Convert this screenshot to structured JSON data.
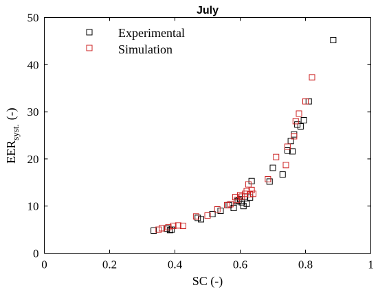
{
  "chart_data": {
    "type": "scatter",
    "title": "July",
    "xlabel": "SC (-)",
    "ylabel_main": "EER",
    "ylabel_sub": "syst.",
    "ylabel_unit": "(-)",
    "xlim": [
      0,
      1
    ],
    "ylim": [
      0,
      50
    ],
    "xticks": [
      0,
      0.2,
      0.4,
      0.6,
      0.8,
      1
    ],
    "xtick_labels": [
      "0",
      "0.2",
      "0.4",
      "0.6",
      "0.8",
      "1"
    ],
    "yticks": [
      0,
      10,
      20,
      30,
      40,
      50
    ],
    "ytick_labels": [
      "0",
      "10",
      "20",
      "30",
      "40",
      "50"
    ],
    "grid": false,
    "legend_position": "top-left",
    "series": [
      {
        "name": "Experimental",
        "color": "#000000",
        "marker": "square-open",
        "points": [
          [
            0.335,
            4.8
          ],
          [
            0.375,
            5.2
          ],
          [
            0.385,
            4.9
          ],
          [
            0.39,
            5.0
          ],
          [
            0.47,
            7.5
          ],
          [
            0.48,
            7.2
          ],
          [
            0.515,
            8.3
          ],
          [
            0.54,
            9.0
          ],
          [
            0.565,
            10.2
          ],
          [
            0.58,
            9.6
          ],
          [
            0.59,
            11.0
          ],
          [
            0.595,
            11.2
          ],
          [
            0.6,
            11.5
          ],
          [
            0.605,
            10.8
          ],
          [
            0.61,
            10.0
          ],
          [
            0.615,
            12.0
          ],
          [
            0.62,
            10.5
          ],
          [
            0.63,
            11.8
          ],
          [
            0.635,
            15.3
          ],
          [
            0.69,
            15.2
          ],
          [
            0.7,
            18.1
          ],
          [
            0.73,
            16.7
          ],
          [
            0.745,
            21.8
          ],
          [
            0.755,
            23.8
          ],
          [
            0.76,
            21.6
          ],
          [
            0.765,
            25.2
          ],
          [
            0.775,
            27.3
          ],
          [
            0.785,
            26.9
          ],
          [
            0.795,
            28.2
          ],
          [
            0.81,
            32.2
          ],
          [
            0.885,
            45.2
          ]
        ]
      },
      {
        "name": "Simulation",
        "color": "#cc2222",
        "marker": "square-open",
        "points": [
          [
            0.35,
            5.0
          ],
          [
            0.36,
            5.3
          ],
          [
            0.38,
            5.5
          ],
          [
            0.395,
            5.8
          ],
          [
            0.41,
            5.9
          ],
          [
            0.425,
            5.8
          ],
          [
            0.465,
            7.8
          ],
          [
            0.5,
            8.0
          ],
          [
            0.53,
            9.3
          ],
          [
            0.56,
            10.2
          ],
          [
            0.57,
            10.4
          ],
          [
            0.585,
            11.9
          ],
          [
            0.59,
            11.3
          ],
          [
            0.6,
            12.3
          ],
          [
            0.605,
            12.0
          ],
          [
            0.615,
            12.6
          ],
          [
            0.62,
            13.2
          ],
          [
            0.625,
            14.6
          ],
          [
            0.63,
            12.5
          ],
          [
            0.635,
            13.4
          ],
          [
            0.64,
            12.6
          ],
          [
            0.685,
            15.7
          ],
          [
            0.71,
            20.4
          ],
          [
            0.74,
            18.7
          ],
          [
            0.745,
            22.6
          ],
          [
            0.765,
            24.8
          ],
          [
            0.77,
            28.0
          ],
          [
            0.78,
            29.6
          ],
          [
            0.8,
            32.2
          ],
          [
            0.82,
            37.3
          ]
        ]
      }
    ]
  }
}
